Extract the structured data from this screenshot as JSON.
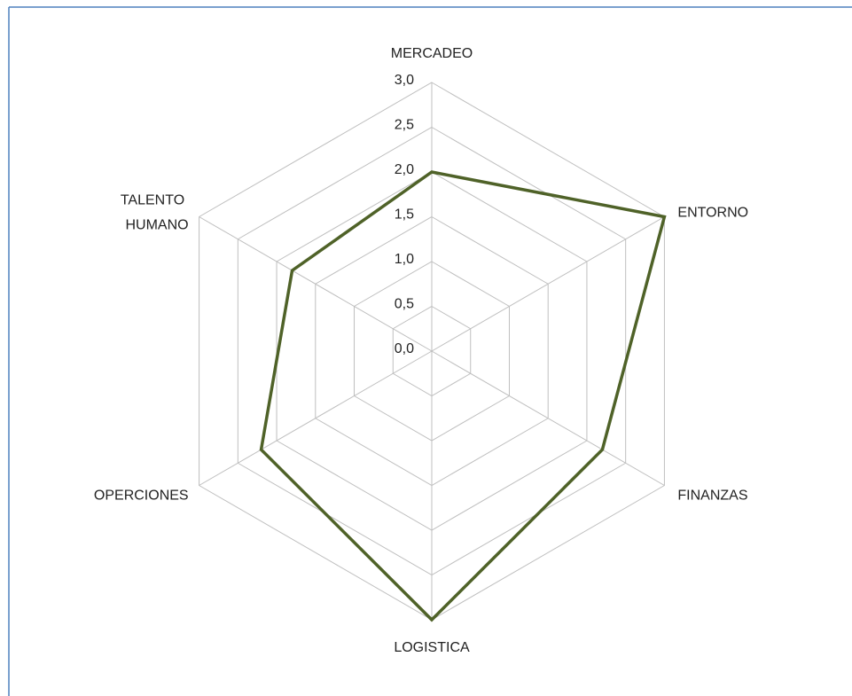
{
  "chart_data": {
    "type": "radar",
    "categories": [
      "MERCADEO",
      "ENTORNO",
      "FINANZAS",
      "LOGISTICA",
      "OPERCIONES",
      "TALENTO HUMANO"
    ],
    "series": [
      {
        "color": "#4f6228",
        "values": [
          2.0,
          3.0,
          2.2,
          3.0,
          2.2,
          1.8
        ]
      }
    ],
    "ylim": [
      0,
      3
    ],
    "yticks": [
      {
        "value": 0,
        "label": "0,0"
      },
      {
        "value": 0.5,
        "label": "0,5"
      },
      {
        "value": 1,
        "label": "1,0"
      },
      {
        "value": 1.5,
        "label": "1,5"
      },
      {
        "value": 2,
        "label": "2,0"
      },
      {
        "value": 2.5,
        "label": "2,5"
      },
      {
        "value": 3,
        "label": "3,0"
      }
    ],
    "grid": true
  }
}
